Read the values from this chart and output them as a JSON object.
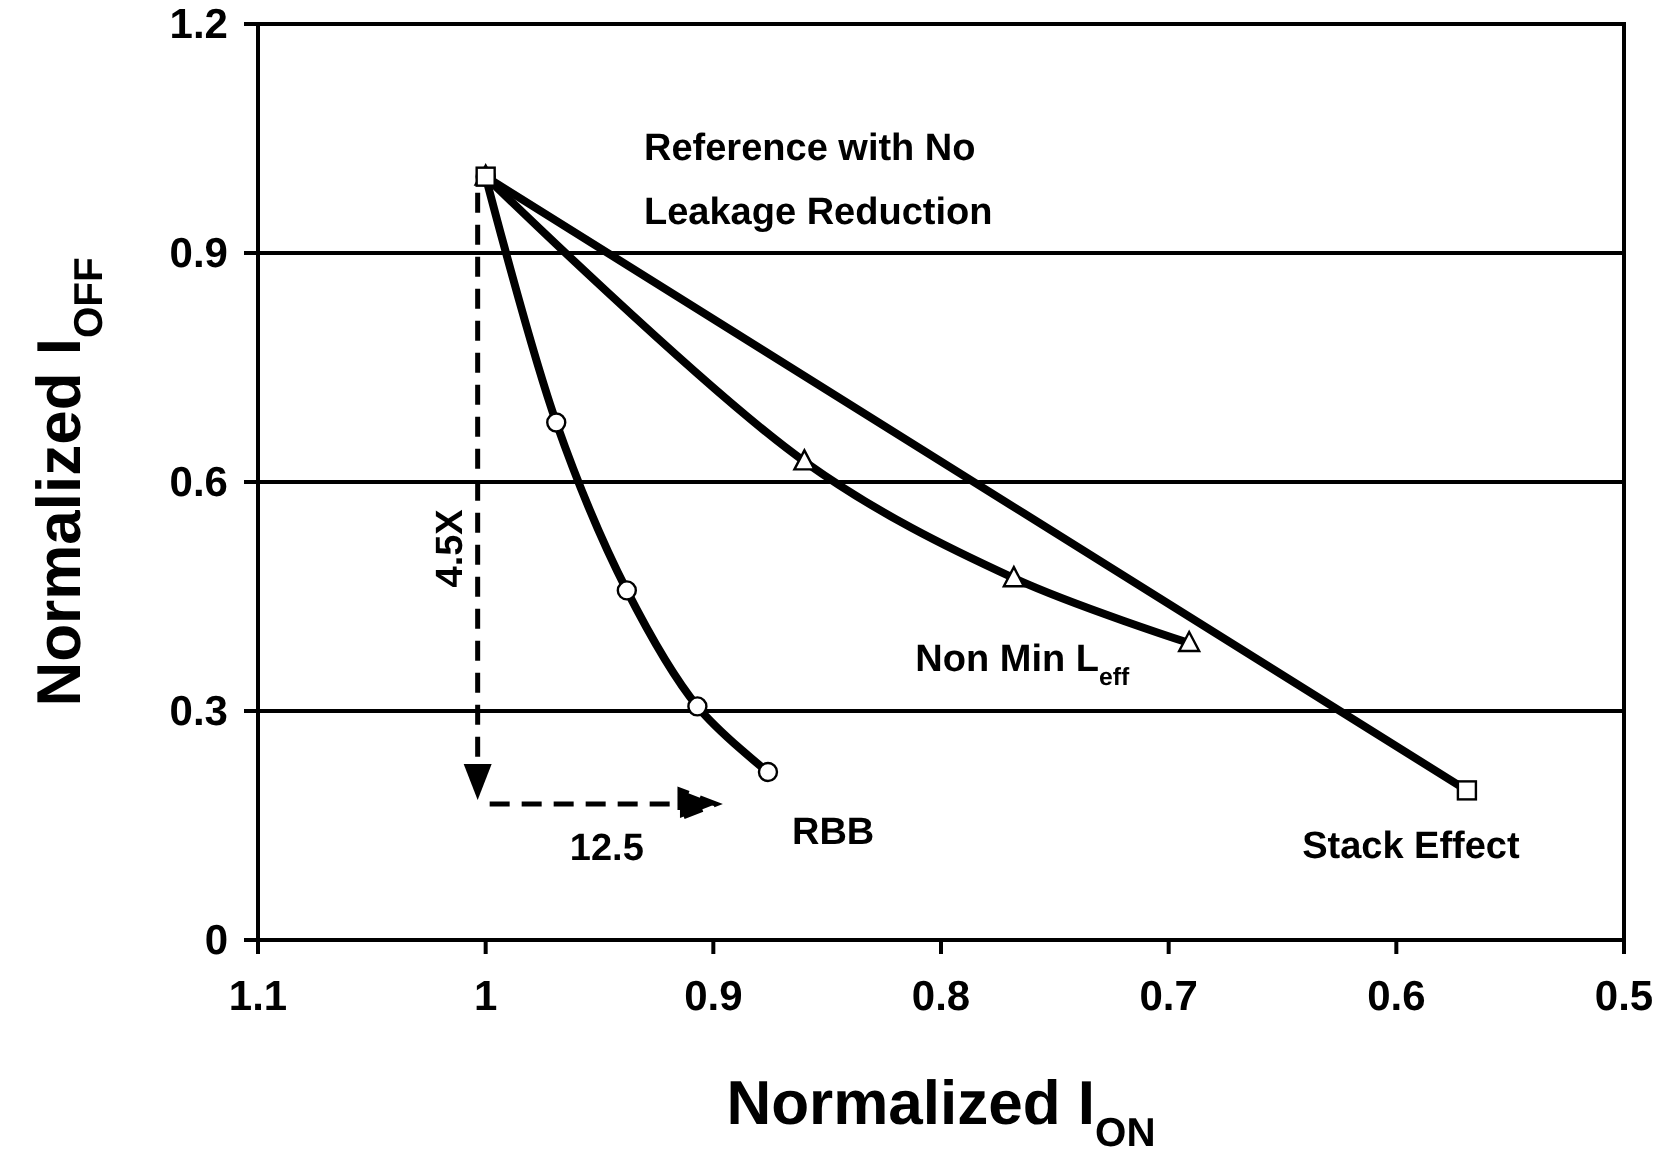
{
  "chart_data": {
    "type": "line",
    "xlabel": "Normalized I$_{ON}$",
    "ylabel": "Normalized I$_{OFF}$",
    "xlim": [
      1.1,
      0.5
    ],
    "xticks": [
      1.1,
      1,
      0.9,
      0.8,
      0.7,
      0.6,
      0.5
    ],
    "ylim": [
      0,
      1.2
    ],
    "yticks": [
      0,
      0.3,
      0.6,
      0.9,
      1.2
    ],
    "grid": "y",
    "series": [
      {
        "name": "RBB",
        "color": "#000000",
        "marker": "circle",
        "x": [
          0.876,
          0.907,
          0.938,
          0.969,
          1
        ],
        "values": [
          0.22,
          0.306,
          0.458,
          0.678,
          1
        ]
      },
      {
        "name": "Non Min L$_{eff}$",
        "color": "#000000",
        "marker": "triangle",
        "x": [
          0.691,
          0.768,
          0.86,
          1
        ],
        "values": [
          0.389,
          0.474,
          0.627,
          1
        ]
      },
      {
        "name": "Stack Effect",
        "color": "#000000",
        "marker": "square",
        "x": [
          0.569,
          1
        ],
        "values": [
          0.196,
          1
        ]
      }
    ],
    "annotations": [
      "Reference with No Leakage Reduction",
      "4.5X",
      "12.5"
    ]
  }
}
